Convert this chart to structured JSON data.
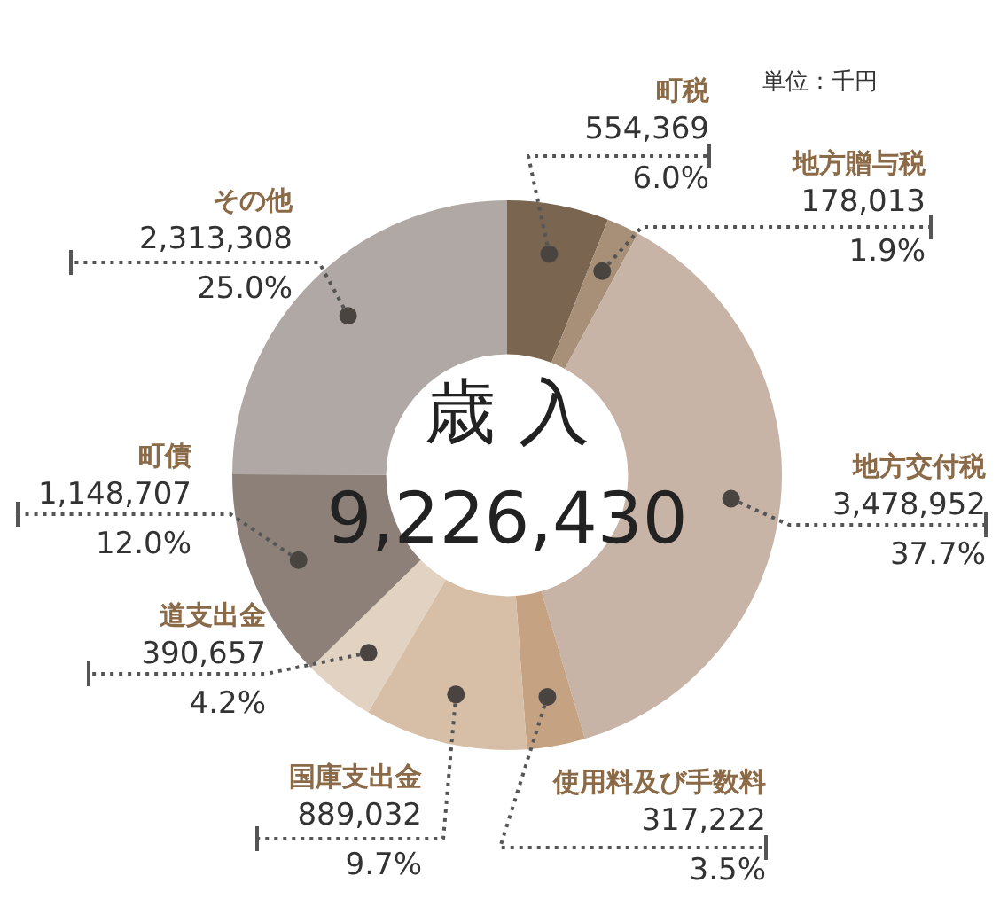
{
  "chart_data": {
    "type": "donut",
    "title": "歳 入",
    "annotations": [
      "9,226,430",
      "単位：千円"
    ],
    "categories": [
      "町税",
      "地方贈与税",
      "地方交付税",
      "使用料及び手数料",
      "国庫支出金",
      "道支出金",
      "町債",
      "その他"
    ],
    "values": [
      554369,
      178013,
      3478952,
      317222,
      889032,
      390657,
      1148707,
      2313308
    ],
    "colors": [
      "#7a6650",
      "#a89078",
      "#c8b4a6",
      "#c4a282",
      "#d6bfa6",
      "#e2d2c2",
      "#8c8078",
      "#b0a8a4"
    ],
    "value_labels": [
      "554,369\n6.0%",
      "178,013\n1.9%",
      "3,478,952\n37.7%",
      "317,222\n3.5%",
      "889,032\n9.7%",
      "390,657\n4.2%",
      "1,148,707\n12.0%",
      "2,313,308\n25.0%"
    ]
  }
}
